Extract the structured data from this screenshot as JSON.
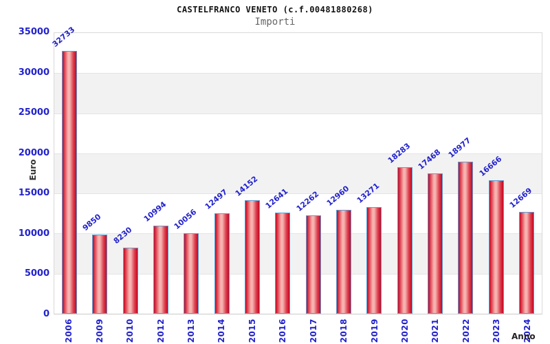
{
  "title": "CASTELFRANCO VENETO (c.f.00481880268)",
  "subtitle": "Importi",
  "chart_data": {
    "type": "bar",
    "title": "CASTELFRANCO VENETO (c.f.00481880268)",
    "subtitle": "Importi",
    "xlabel": "Anno",
    "ylabel": "Euro",
    "categories": [
      "2006",
      "2009",
      "2010",
      "2012",
      "2013",
      "2014",
      "2015",
      "2016",
      "2017",
      "2018",
      "2019",
      "2020",
      "2021",
      "2022",
      "2023",
      "2024"
    ],
    "values": [
      32733,
      9850,
      8230,
      10994,
      10056,
      12497,
      14152,
      12641,
      12262,
      12960,
      13271,
      18283,
      17468,
      18977,
      16666,
      12669
    ],
    "ylim": [
      0,
      35000
    ],
    "yticks": [
      0,
      5000,
      10000,
      15000,
      20000,
      25000,
      30000,
      35000
    ],
    "grid": "horizontal alternating bands",
    "legend": false,
    "bar_labels_rotated": true,
    "x_labels_rotated": true
  },
  "colors": {
    "axis_text": "#2222cc",
    "bar_edge_border": "#56a0d9",
    "bar_red": "#c40723",
    "bar_highlight": "#f6b3b0",
    "band_gray": "#f2f2f2",
    "title": "#111111",
    "subtitle": "#666666",
    "axis_title": "#333333"
  }
}
